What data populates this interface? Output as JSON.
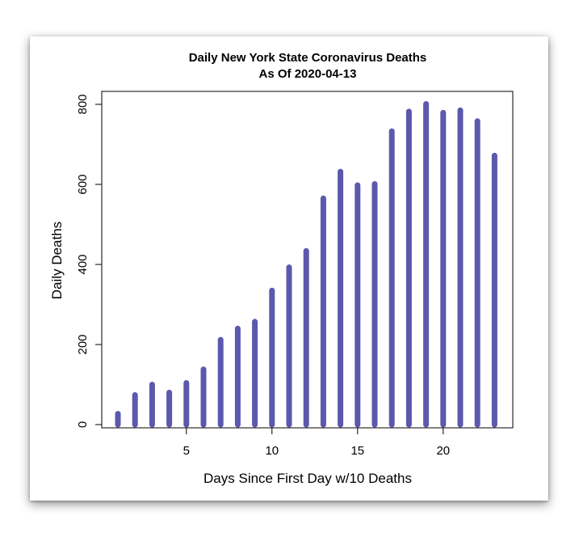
{
  "chart_data": {
    "type": "bar",
    "title": "Daily New York State Coronavirus Deaths",
    "subtitle": "As Of 2020-04-13",
    "xlabel": "Days Since First Day w/10 Deaths",
    "ylabel": "Daily Deaths",
    "x": [
      1,
      2,
      3,
      4,
      5,
      6,
      7,
      8,
      9,
      10,
      11,
      12,
      13,
      14,
      15,
      16,
      17,
      18,
      19,
      20,
      21,
      22,
      23
    ],
    "values": [
      27,
      74,
      100,
      80,
      104,
      138,
      212,
      240,
      257,
      335,
      393,
      434,
      565,
      632,
      598,
      601,
      733,
      782,
      801,
      779,
      785,
      758,
      672
    ],
    "xlim": [
      0,
      24
    ],
    "ylim": [
      0,
      830
    ],
    "xticks": [
      5,
      10,
      15,
      20
    ],
    "yticks": [
      0,
      200,
      400,
      600,
      800
    ],
    "grid": false,
    "bar_color": "#5b59ad"
  }
}
